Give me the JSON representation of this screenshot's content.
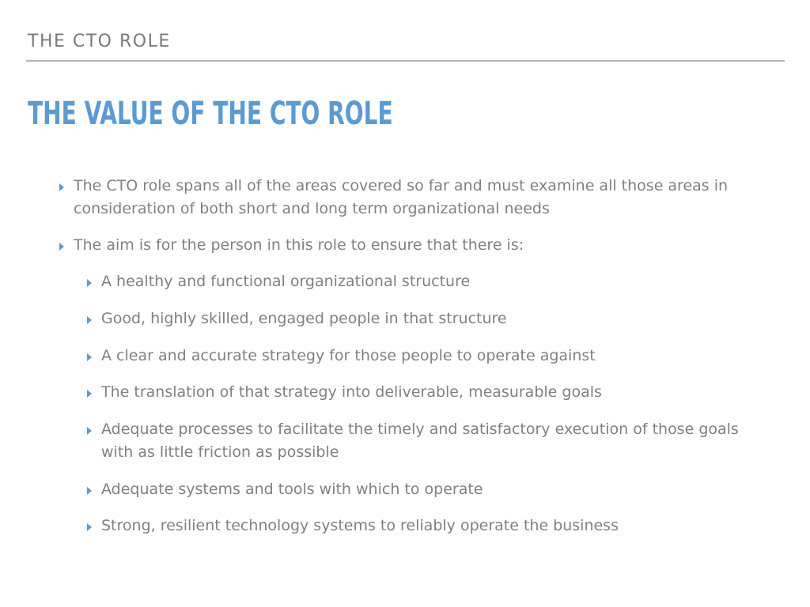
{
  "header": {
    "section_label": "THE CTO ROLE"
  },
  "slide": {
    "title": "THE VALUE OF THE CTO ROLE",
    "bullets": [
      {
        "text": "The CTO role spans all of the areas covered so far and must examine all those areas in consideration of both short and long term organizational needs"
      },
      {
        "text": "The aim is for the person in this role to ensure that there is:"
      }
    ],
    "sub_bullets": [
      {
        "text": "A healthy and functional organizational structure"
      },
      {
        "text": "Good, highly skilled, engaged people in that structure"
      },
      {
        "text": "A clear and accurate strategy for those people to operate against"
      },
      {
        "text": "The translation of that strategy into deliverable, measurable goals"
      },
      {
        "text": "Adequate processes to facilitate the timely and satisfactory execution of those goals with as little friction as possible"
      },
      {
        "text": "Adequate systems and tools with which to operate"
      },
      {
        "text": "Strong, resilient technology systems to reliably operate the business"
      }
    ]
  },
  "colors": {
    "title": "#5b9bd2",
    "header": "#7a7a7a",
    "body_text": "#808080",
    "bullet_marker": "#5b9bd2",
    "divider": "#b3b3b3",
    "background": "#ffffff"
  },
  "icons": {
    "bullet_marker": "triangle-right-icon"
  }
}
